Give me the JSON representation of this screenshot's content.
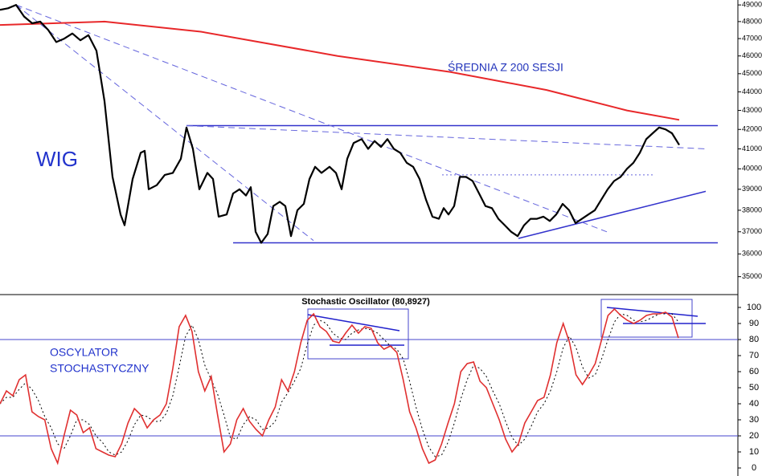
{
  "chart_data": [
    {
      "type": "line",
      "title": "WIG",
      "log_y": true,
      "xlim": [
        0,
        918
      ],
      "ylim": [
        34300,
        49300
      ],
      "yticks": [
        35000,
        36000,
        37000,
        38000,
        39000,
        40000,
        41000,
        42000,
        43000,
        44000,
        45000,
        46000,
        47000,
        48000,
        49000
      ],
      "x": [
        0,
        10,
        20,
        30,
        40,
        50,
        60,
        70,
        80,
        90,
        100,
        110,
        120,
        130,
        140,
        150,
        155,
        165,
        175,
        180,
        185,
        195,
        205,
        215,
        225,
        232,
        240,
        248,
        258,
        265,
        272,
        282,
        290,
        298,
        306,
        312,
        318,
        325,
        333,
        340,
        348,
        355,
        362,
        370,
        378,
        385,
        392,
        400,
        410,
        418,
        425,
        432,
        440,
        450,
        458,
        466,
        474,
        482,
        490,
        498,
        506,
        514,
        522,
        530,
        538,
        546,
        552,
        558,
        565,
        572,
        580,
        588,
        596,
        604,
        612,
        620,
        628,
        636,
        644,
        652,
        660,
        668,
        676,
        684,
        692,
        700,
        708,
        716,
        724,
        732,
        740,
        748,
        756,
        764,
        772,
        780,
        788,
        796,
        804,
        812,
        820,
        828,
        836,
        845
      ],
      "series": [
        {
          "color": "#000000",
          "values": [
            48700,
            48800,
            49000,
            48300,
            47900,
            48000,
            47500,
            46800,
            47000,
            47300,
            46900,
            47200,
            46300,
            43500,
            39600,
            37800,
            37300,
            39500,
            40800,
            40900,
            39000,
            39200,
            39700,
            39800,
            40500,
            42100,
            41000,
            39000,
            39800,
            39500,
            37700,
            37800,
            38800,
            39000,
            38700,
            39100,
            37000,
            36500,
            36900,
            38200,
            38400,
            38200,
            36800,
            38000,
            38300,
            39500,
            40100,
            39800,
            40100,
            39800,
            39000,
            40500,
            41300,
            41500,
            41000,
            41400,
            41100,
            41500,
            41000,
            40800,
            40300,
            40100,
            39500,
            38500,
            37700,
            37600,
            38100,
            37800,
            38200,
            39600,
            39600,
            39400,
            38800,
            38200,
            38100,
            37600,
            37300,
            37000,
            36800,
            37300,
            37600,
            37600,
            37700,
            37500,
            37800,
            38300,
            38000,
            37400,
            37600,
            37800,
            38000,
            38500,
            39000,
            39400,
            39600,
            40000,
            40300,
            40800,
            41500,
            41800,
            42100,
            42000,
            41800,
            41200
          ]
        }
      ],
      "moving_average": {
        "name": "ŚREDNIA Z 200 SESJI",
        "color": "#e8282a",
        "x": [
          0,
          130,
          250,
          420,
          560,
          680,
          780,
          845
        ],
        "values": [
          47800,
          48000,
          47400,
          46000,
          45100,
          44100,
          43000,
          42500
        ]
      },
      "trendlines": [
        {
          "color": "#3333cc",
          "style": "solid",
          "x": [
            232,
            893
          ],
          "values": [
            42200,
            42200
          ]
        },
        {
          "color": "#3333cc",
          "style": "solid",
          "x": [
            290,
            893
          ],
          "values": [
            36500,
            36500
          ]
        },
        {
          "color": "#3333cc",
          "style": "solid",
          "x": [
            645,
            878
          ],
          "values": [
            36700,
            38900
          ]
        },
        {
          "color": "#6666dd",
          "style": "dashed",
          "x": [
            20,
            390
          ],
          "values": [
            49000,
            36600
          ]
        },
        {
          "color": "#6666dd",
          "style": "dashed",
          "x": [
            20,
            755
          ],
          "values": [
            49000,
            37000
          ]
        },
        {
          "color": "#6666dd",
          "style": "dashed",
          "x": [
            232,
            880
          ],
          "values": [
            42200,
            41000
          ]
        },
        {
          "color": "#6666dd",
          "style": "dotted",
          "x": [
            550,
            815
          ],
          "values": [
            39700,
            39700
          ]
        }
      ]
    },
    {
      "type": "line",
      "title": "Stochastic Oscillator (80,8927)",
      "annotation": [
        "OSCYLATOR",
        "STOCHASTYCZNY"
      ],
      "ylim": [
        -5,
        107.5
      ],
      "yticks": [
        0,
        10,
        20,
        30,
        40,
        50,
        60,
        70,
        80,
        90,
        100
      ],
      "levels": [
        80,
        20
      ],
      "series": [
        {
          "color": "#e03030",
          "values": [
            40,
            48,
            45,
            55,
            58,
            35,
            32,
            30,
            12,
            3,
            20,
            36,
            33,
            22,
            25,
            12,
            10,
            8,
            7,
            15,
            28,
            37,
            33,
            25,
            30,
            33,
            40,
            62,
            88,
            95,
            85,
            60,
            48,
            57,
            33,
            10,
            15,
            30,
            37,
            29,
            24,
            20,
            30,
            38,
            55,
            48,
            60,
            78,
            92,
            96,
            88,
            85,
            79,
            78,
            84,
            89,
            84,
            88,
            87,
            78,
            74,
            76,
            72,
            55,
            35,
            25,
            12,
            3,
            5,
            15,
            28,
            40,
            60,
            65,
            66,
            54,
            50,
            40,
            30,
            18,
            10,
            15,
            28,
            35,
            42,
            44,
            58,
            78,
            90,
            78,
            58,
            52,
            58,
            65,
            80,
            95,
            99,
            95,
            92,
            90,
            92,
            95,
            96,
            96,
            97,
            94,
            81
          ]
        },
        {
          "color": "#000000",
          "dash": "dotted",
          "values": [
            40,
            44,
            44,
            49,
            53,
            49,
            42,
            32,
            25,
            15,
            12,
            20,
            30,
            30,
            27,
            20,
            16,
            10,
            8,
            10,
            17,
            27,
            33,
            32,
            29,
            29,
            34,
            45,
            63,
            82,
            89,
            80,
            64,
            55,
            46,
            33,
            19,
            18,
            27,
            32,
            30,
            24,
            25,
            29,
            41,
            47,
            54,
            62,
            77,
            89,
            92,
            90,
            84,
            81,
            80,
            84,
            86,
            87,
            86,
            84,
            80,
            76,
            74,
            68,
            54,
            38,
            24,
            13,
            7,
            8,
            16,
            28,
            43,
            55,
            64,
            62,
            57,
            48,
            40,
            29,
            19,
            14,
            18,
            26,
            35,
            40,
            48,
            60,
            75,
            82,
            75,
            63,
            56,
            58,
            68,
            80,
            91,
            96,
            95,
            92,
            91,
            92,
            94,
            96,
            96,
            96,
            91
          ]
        }
      ]
    }
  ]
}
